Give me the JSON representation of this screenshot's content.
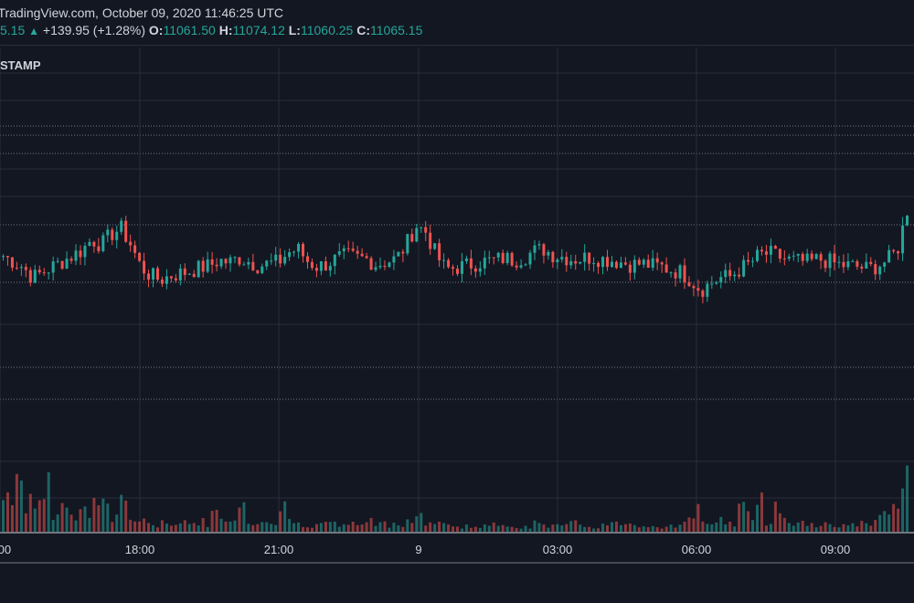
{
  "header": {
    "source_timestamp": "TradingView.com, October 09, 2020 11:46:25 UTC",
    "last_price_fragment": "5.15",
    "change": "+139.95 (+1.28%)",
    "open_label": "O:",
    "open": "11061.50",
    "high_label": "H:",
    "high": "11074.12",
    "low_label": "L:",
    "low": "11060.25",
    "close_label": "C:",
    "close": "11065.15"
  },
  "symbol_fragment": "STAMP",
  "colors": {
    "background": "#131722",
    "up": "#26a69a",
    "down": "#ef5350",
    "grid": "#2a2e39"
  },
  "chart_data": {
    "type": "candlestick",
    "x_tick_labels": [
      ":00",
      "18:00",
      "21:00",
      "9",
      "03:00",
      "06:00",
      "09:00"
    ],
    "price_path": [
      0,
      -0.5,
      -1,
      -2,
      -1.5,
      -1,
      -0.5,
      0,
      0.5,
      1.5,
      1,
      2,
      2.5,
      1,
      -1,
      -1.8,
      -2.2,
      -1.8,
      -1.6,
      -1.4,
      -1.1,
      -0.9,
      -0.4,
      -0.6,
      -0.2,
      -0.5,
      -0.9,
      -0.7,
      -0.6,
      0.3,
      0.6,
      -0.5,
      -1,
      -0.7,
      -0.2,
      0,
      -0.2,
      -0.3,
      -0.8,
      -0.5,
      -0.3,
      1,
      2.8,
      2.2,
      0.2,
      -1.2,
      -1.1,
      -0.9,
      -0.7,
      -0.5,
      -0.4,
      -0.2,
      -0.4,
      -0.1,
      0.4,
      0.6,
      0.1,
      -0.1,
      -0.3,
      -0.2,
      -0.1,
      -0.3,
      -0.4,
      -0.6,
      -0.8,
      -0.7,
      -0.9,
      -1,
      -1.3,
      -1.5,
      -2.2,
      -3.1,
      -2.5,
      -2,
      -1.9,
      -1.2,
      -0.7,
      0.1,
      0.2,
      -0.1,
      -0.4,
      -0.5,
      -0.6,
      -0.3,
      -0.5,
      -0.8,
      -0.9,
      -1,
      -1.2,
      -0.9,
      -0.4,
      0.5,
      4.2
    ],
    "volume_profile": [
      0.5,
      0.6,
      0.35,
      0.45,
      0.8,
      0.25,
      0.3,
      0.2,
      0.25,
      0.4,
      0.3,
      0.2,
      0.45,
      0.15,
      0.12,
      0.1,
      0.1,
      0.12,
      0.15,
      0.1,
      0.12,
      0.2,
      0.15,
      0.12,
      0.5,
      0.1,
      0.15,
      0.1,
      0.35,
      0.12,
      0.1,
      0.1,
      0.12,
      0.1,
      0.08,
      0.1,
      0.1,
      0.12,
      0.1,
      0.1,
      0.12,
      0.15,
      0.2,
      0.1,
      0.12,
      0.08,
      0.08,
      0.07,
      0.06,
      0.07,
      0.08,
      0.1,
      0.08,
      0.07,
      0.1,
      0.09,
      0.08,
      0.07,
      0.1,
      0.08,
      0.07,
      0.08,
      0.1,
      0.12,
      0.1,
      0.09,
      0.08,
      0.07,
      0.08,
      0.1,
      0.15,
      0.25,
      0.12,
      0.15,
      0.1,
      0.3,
      0.2,
      0.35,
      0.15,
      0.3,
      0.1,
      0.12,
      0.1,
      0.08,
      0.1,
      0.1,
      0.08,
      0.1,
      0.12,
      0.15,
      0.2,
      0.3,
      0.6
    ]
  }
}
